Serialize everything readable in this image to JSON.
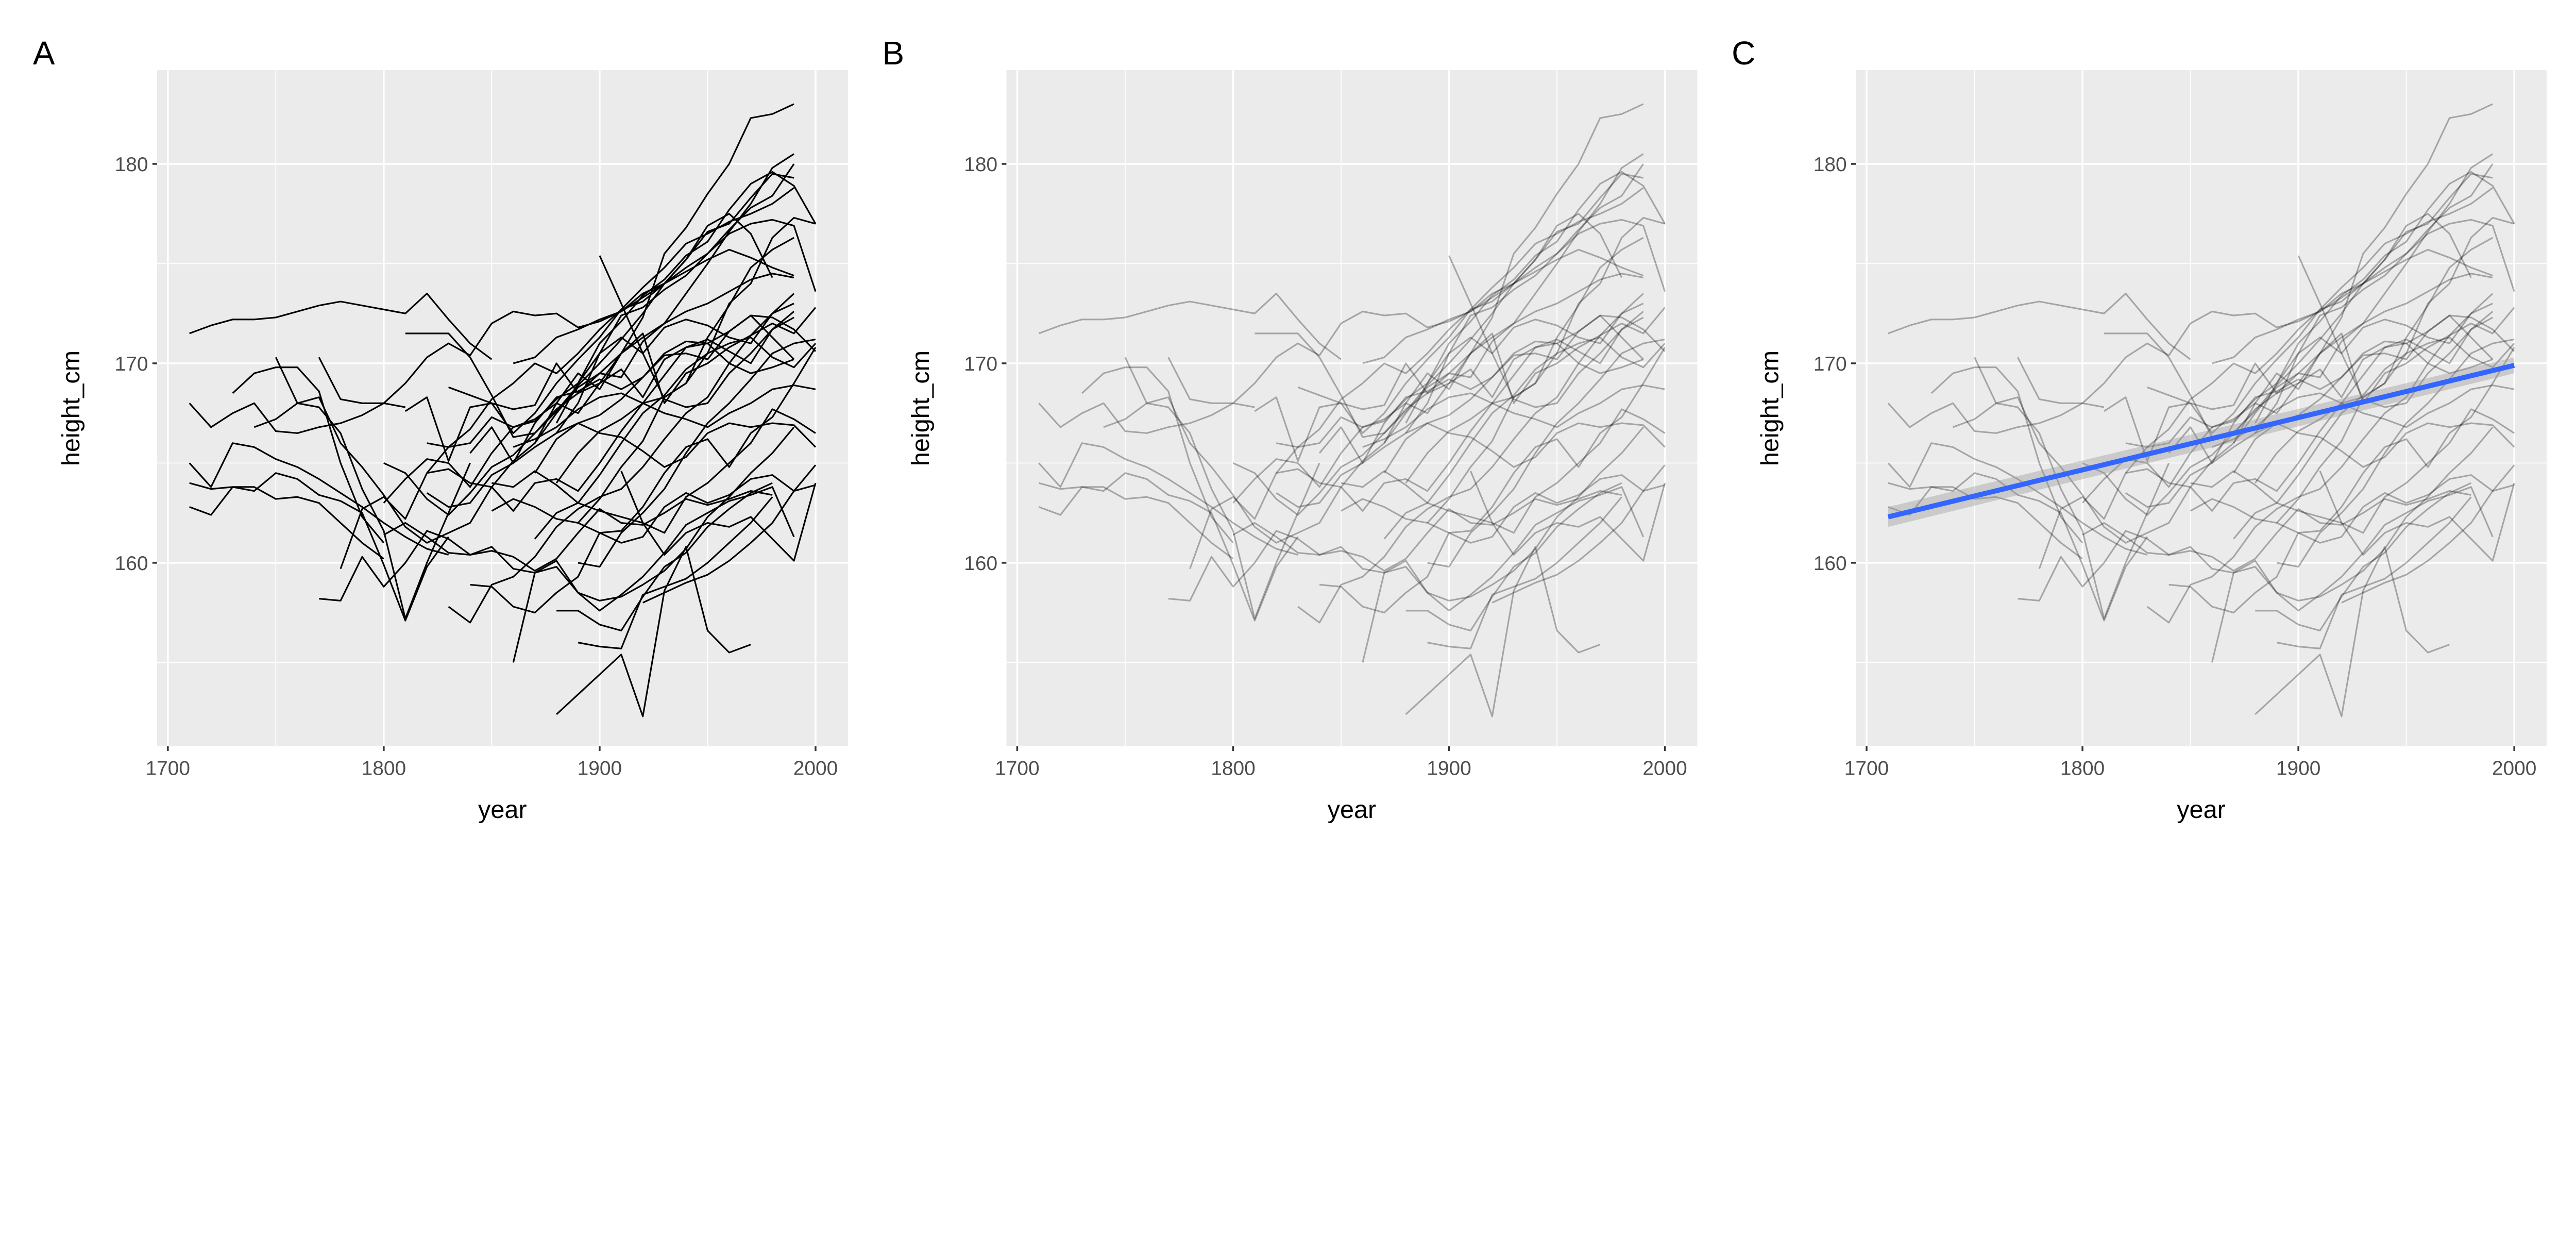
{
  "chart_data": {
    "type": "line",
    "xlabel": "year",
    "ylabel": "height_cm",
    "xlim": [
      1695,
      2015
    ],
    "ylim": [
      150.8,
      184.7
    ],
    "x_ticks": [
      "1700",
      "1800",
      "1900",
      "2000"
    ],
    "x_tick_values": [
      1700,
      1800,
      1900,
      2000
    ],
    "y_ticks": [
      "160",
      "170",
      "180"
    ],
    "y_tick_values": [
      160,
      170,
      180
    ],
    "grid": true,
    "background": "#EBEBEB",
    "line_color": "#000000",
    "panels": [
      {
        "tag": "A",
        "line_alpha": 1.0
      },
      {
        "tag": "B",
        "line_alpha": 0.3
      },
      {
        "tag": "C",
        "line_alpha": 0.3,
        "smooth": {
          "method": "lm",
          "color": "#3366FF",
          "ribbon_color": "#999999",
          "x": [
            1710,
            2000
          ],
          "y": [
            162.3,
            169.9
          ],
          "se_band": [
            0.5,
            0.4
          ]
        }
      }
    ],
    "series_note_step_years": 10,
    "series": [
      {
        "from": 1710,
        "y": [
          171.5,
          171.9,
          172.2,
          172.2,
          172.3,
          172.6,
          172.9,
          173.1,
          172.9,
          172.7,
          172.5,
          173.5,
          172.2,
          171.0,
          170.2
        ]
      },
      {
        "from": 1710,
        "y": [
          168.0,
          166.8,
          167.5,
          168.0,
          166.6,
          166.5,
          166.8,
          167.0,
          167.4,
          168.0,
          167.8
        ]
      },
      {
        "from": 1710,
        "y": [
          165.0,
          163.8,
          166.0,
          165.8,
          165.2,
          164.8,
          164.2,
          163.5,
          162.8,
          162.0,
          161.3,
          160.7,
          160.4
        ]
      },
      {
        "from": 1710,
        "y": [
          164.0,
          163.7,
          163.8,
          163.6,
          164.5,
          164.2,
          163.4,
          163.1,
          162.5,
          159.9,
          157.1,
          159.8,
          161.3
        ]
      },
      {
        "from": 1710,
        "y": [
          162.8,
          162.4,
          163.8,
          163.8,
          163.2,
          163.3,
          163.0,
          162.0,
          161.0,
          160.2
        ]
      },
      {
        "from": 1730,
        "y": [
          168.5,
          169.5,
          169.8,
          169.8,
          168.6,
          165.0,
          162.3,
          161.0
        ]
      },
      {
        "from": 1740,
        "y": [
          166.8,
          167.2,
          168.0,
          167.8,
          166.5,
          163.7,
          161.6,
          157.2,
          160.0,
          162.5,
          165.0
        ]
      },
      {
        "from": 1750,
        "y": [
          170.3,
          168.0,
          168.3,
          166.0,
          164.8,
          163.4,
          161.8,
          161.0,
          161.5,
          162.0,
          163.8,
          165.1,
          166.0,
          167.5,
          168.8,
          169.5,
          170.5,
          171.3,
          172.0,
          172.6,
          173.0,
          173.6,
          174.2,
          174.5,
          174.3
        ]
      },
      {
        "from": 1770,
        "y": [
          170.3,
          168.2,
          168.0,
          168.0,
          169.0,
          170.3,
          171.0,
          170.4,
          172.0,
          172.6,
          172.4,
          172.5,
          171.8,
          172.1,
          172.6,
          173.5,
          174.0,
          174.8,
          175.5,
          176.7,
          177.8,
          178.4,
          180.0
        ]
      },
      {
        "from": 1780,
        "y": [
          159.7,
          162.7,
          163.3,
          162.2,
          164.5,
          165.8,
          166.0,
          167.3,
          166.8,
          167.2,
          168.0,
          169.5,
          168.7,
          170.5,
          172.3,
          175.5,
          176.8,
          178.5,
          180.0,
          182.3,
          182.5,
          183.0
        ]
      },
      {
        "from": 1770,
        "y": [
          158.2,
          158.1,
          160.3,
          158.8,
          160.0,
          161.6,
          161.2,
          160.4,
          160.8,
          159.7,
          159.5,
          159.8,
          158.5,
          157.6,
          158.4,
          159.3,
          160.5,
          161.9,
          162.5,
          163.1,
          163.4,
          163.8,
          161.3
        ]
      },
      {
        "from": 1810,
        "y": [
          171.5,
          171.5,
          171.5,
          170.3,
          168.4,
          166.3,
          166.5,
          167.7,
          168.5,
          169.5,
          169.3,
          171.1,
          172.0,
          173.5,
          175.0,
          176.6,
          178.0,
          179.8,
          180.5
        ]
      },
      {
        "from": 1830,
        "y": [
          157.8,
          157.0,
          158.9,
          159.3,
          160.3,
          161.8,
          162.7,
          163.3,
          163.7,
          164.8,
          166.2,
          167.5,
          168.3,
          170.0,
          171.4,
          172.5,
          173.0
        ]
      },
      {
        "from": 1840,
        "y": [
          158.9,
          158.8,
          157.8,
          157.5,
          158.5,
          159.3,
          161.5,
          161.6,
          162.8,
          164.5,
          165.8,
          166.2,
          164.8,
          166.5,
          167.3,
          169.0,
          170.8
        ]
      },
      {
        "from": 1860,
        "y": [
          155.0,
          159.5,
          160.1,
          158.5,
          158.1,
          158.3,
          158.9,
          159.6,
          160.7,
          162.3,
          163.3,
          164.5,
          165.5,
          166.8
        ]
      },
      {
        "from": 1880,
        "y": [
          152.4,
          153.4,
          154.4,
          155.4,
          152.3,
          158.6,
          160.8,
          156.6,
          155.5,
          155.9
        ]
      },
      {
        "from": 1880,
        "y": [
          157.6,
          157.6,
          156.9,
          156.6,
          158.3,
          159.8,
          160.5,
          161.8,
          162.7,
          163.5,
          164.0
        ]
      },
      {
        "from": 1890,
        "y": [
          156.0,
          155.8,
          155.7,
          158.4,
          158.8,
          159.2,
          160.0,
          161.0,
          162.0,
          163.3
        ]
      },
      {
        "from": 1800,
        "y": [
          165.0,
          164.5,
          163.2,
          162.4,
          163.5,
          164.8,
          165.4,
          166.5,
          167.6,
          168.9,
          170.0,
          171.2,
          172.5,
          174.0,
          175.2,
          176.9,
          177.5,
          176.5,
          174.3
        ]
      },
      {
        "from": 1800,
        "y": [
          163.0,
          164.2,
          165.2,
          165.0,
          163.8,
          165.5,
          166.8,
          167.1,
          168.2,
          169.0,
          170.5,
          171.3,
          170.5,
          171.8,
          172.2,
          171.9,
          171.3,
          171.0,
          172.5,
          173.5
        ]
      },
      {
        "from": 1800,
        "y": [
          161.4,
          162.0,
          161.3,
          160.5,
          160.4,
          160.6,
          160.3,
          159.6,
          160.2,
          161.5,
          162.7,
          162.0,
          161.9,
          162.5,
          163.2,
          162.9,
          163.2,
          163.6,
          163.4
        ]
      },
      {
        "from": 1810,
        "y": [
          167.6,
          168.3,
          165.1,
          167.8,
          168.0,
          167.7,
          167.9,
          170.0,
          168.5,
          169.0,
          169.7,
          168.3,
          170.2,
          170.8,
          171.0,
          170.0,
          169.5,
          169.8,
          170.2
        ]
      },
      {
        "from": 1820,
        "y": [
          164.5,
          164.7,
          164.0,
          163.8,
          162.6,
          164.0,
          164.2,
          163.6,
          165.0,
          166.6,
          168.0,
          169.4,
          170.8,
          171.2,
          170.6,
          170.0,
          171.7,
          172.3
        ]
      },
      {
        "from": 1820,
        "y": [
          163.5,
          162.8,
          163.0,
          164.4,
          165.0,
          165.8,
          166.5,
          167.0,
          167.4,
          168.2,
          169.3,
          170.4,
          170.5,
          170.2,
          171.6,
          172.4,
          171.3,
          170.2
        ]
      },
      {
        "from": 1820,
        "y": [
          166.0,
          165.8,
          166.7,
          168.2,
          169.0,
          170.0,
          169.5,
          170.5,
          171.7,
          172.7,
          173.8,
          174.8,
          176.0,
          176.5,
          177.1,
          177.5,
          178.0,
          178.8
        ]
      },
      {
        "from": 1850,
        "y": [
          162.6,
          163.2,
          162.8,
          162.2,
          162.0,
          161.5,
          161.0,
          161.3,
          162.8,
          163.5,
          163.0,
          163.4,
          164.2,
          164.4,
          163.6,
          163.9
        ]
      },
      {
        "from": 1850,
        "y": [
          164.0,
          163.8,
          164.6,
          163.9,
          163.0,
          162.6,
          162.3,
          162.0,
          160.4,
          161.5,
          162.0,
          161.8,
          162.3,
          161.2,
          160.1,
          164.0
        ]
      },
      {
        "from": 1860,
        "y": [
          170.0,
          170.3,
          171.3,
          171.7,
          172.2,
          172.6,
          173.3,
          174.0,
          174.6,
          175.2,
          175.7,
          175.3,
          174.8,
          174.4
        ]
      },
      {
        "from": 1860,
        "y": [
          165.8,
          166.2,
          166.8,
          167.7,
          168.3,
          168.5,
          168.0,
          167.5,
          167.2,
          166.8,
          167.5,
          168.0,
          168.7,
          168.9,
          168.7
        ]
      },
      {
        "from": 1870,
        "y": [
          164.5,
          166.2,
          167.0,
          166.5,
          166.3,
          165.6,
          164.8,
          165.3,
          166.5,
          167.0,
          166.8,
          167.0,
          166.9,
          165.8
        ]
      },
      {
        "from": 1870,
        "y": [
          161.2,
          162.5,
          163.0,
          164.4,
          166.0,
          167.5,
          168.4,
          169.7,
          170.5,
          171.0,
          171.3,
          170.3,
          169.8,
          171.0
        ]
      },
      {
        "from": 1880,
        "y": [
          167.0,
          169.0,
          171.0,
          172.1,
          173.4,
          174.2,
          175.4,
          176.1,
          177.7,
          179.0,
          179.6,
          178.9,
          177.0
        ]
      },
      {
        "from": 1880,
        "y": [
          164.0,
          165.5,
          166.6,
          167.2,
          168.0,
          168.3,
          169.0,
          171.3,
          172.9,
          174.8,
          175.7,
          176.3
        ]
      },
      {
        "from": 1890,
        "y": [
          162.0,
          163.2,
          164.8,
          166.1,
          168.3,
          169.0,
          170.5,
          173.0,
          174.0,
          176.3,
          177.3,
          177.0
        ]
      },
      {
        "from": 1870,
        "y": [
          166.0,
          168.0,
          167.5,
          169.0,
          170.5,
          171.5,
          168.0,
          169.5,
          170.0,
          170.8,
          171.4,
          172.0,
          171.5,
          172.8
        ]
      },
      {
        "from": 1890,
        "y": [
          160.0,
          159.8,
          161.5,
          162.5,
          163.7,
          165.5,
          167.0,
          168.0,
          169.2,
          170.5,
          171.0,
          171.2
        ]
      },
      {
        "from": 1900,
        "y": [
          175.4,
          173.0,
          170.5,
          168.2,
          167.8,
          168.0,
          169.5,
          170.5,
          171.7,
          172.6
        ]
      },
      {
        "from": 1880,
        "y": [
          166.5,
          168.0,
          170.5,
          172.4,
          172.8,
          173.7,
          174.4,
          175.5,
          176.5,
          177.0,
          177.2,
          176.9,
          173.6
        ]
      },
      {
        "from": 1840,
        "y": [
          165.5,
          166.8,
          165.0,
          167.0,
          168.3,
          168.6,
          169.2,
          168.7,
          169.3,
          170.5,
          171.1,
          171.0,
          171.6,
          172.4,
          172.3,
          171.7,
          170.6
        ]
      },
      {
        "from": 1920,
        "y": [
          158.0,
          158.5,
          159.0,
          159.4,
          160.1,
          161.0,
          162.0,
          163.6,
          164.9
        ]
      },
      {
        "from": 1910,
        "y": [
          164.6,
          162.0,
          161.5,
          163.3,
          164.0,
          165.0,
          166.0,
          167.7,
          167.2,
          166.5
        ]
      },
      {
        "from": 1830,
        "y": [
          168.8,
          168.4,
          168.0,
          166.5,
          167.5,
          169.0,
          170.2,
          171.3,
          172.7,
          173.1,
          174.0,
          175.2,
          176.6,
          177.0,
          178.3,
          179.5,
          179.3
        ]
      }
    ]
  }
}
